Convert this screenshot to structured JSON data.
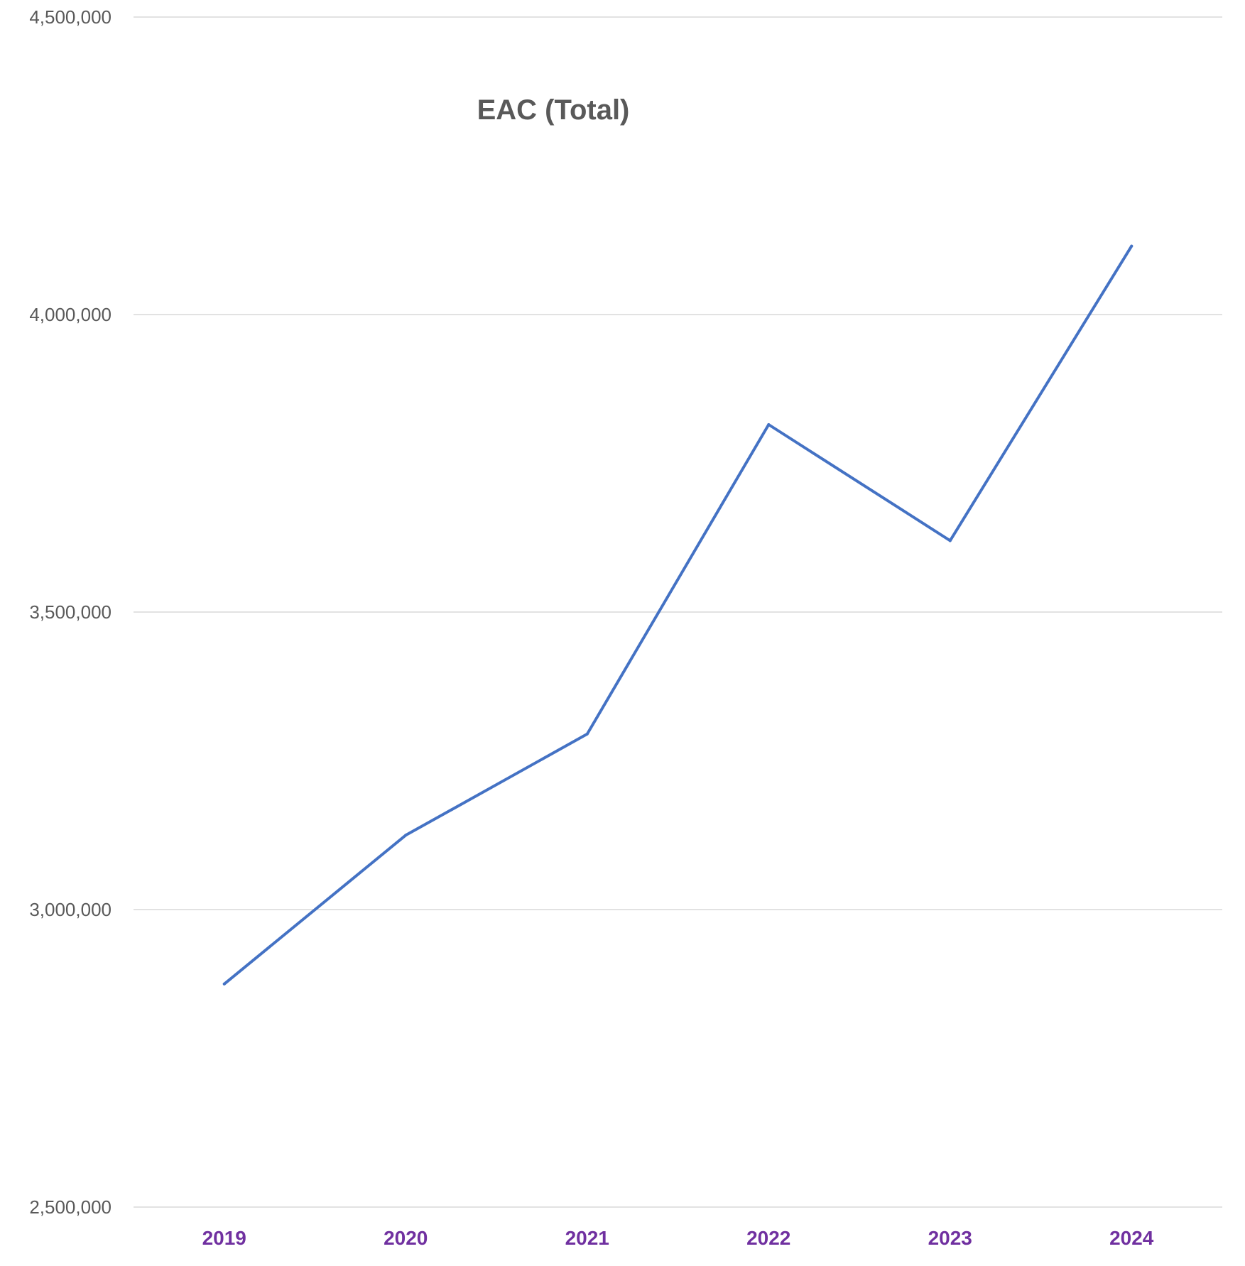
{
  "chart_data": {
    "type": "line",
    "title": "EAC (Total)",
    "xlabel": "",
    "ylabel": "",
    "categories": [
      "2019",
      "2020",
      "2021",
      "2022",
      "2023",
      "2024"
    ],
    "series": [
      {
        "values": [
          2875000,
          3125000,
          3295000,
          3815000,
          3620000,
          4115000
        ],
        "color": "#4472c4"
      }
    ],
    "ylim": [
      2500000,
      4500000
    ],
    "yticks": [
      2500000,
      3000000,
      3500000,
      4000000,
      4500000
    ],
    "ytick_labels": [
      "2,500,000",
      "3,000,000",
      "3,500,000",
      "4,000,000",
      "4,500,000"
    ],
    "xtick_color": "#7030a0",
    "grid": true,
    "legend": "none"
  }
}
